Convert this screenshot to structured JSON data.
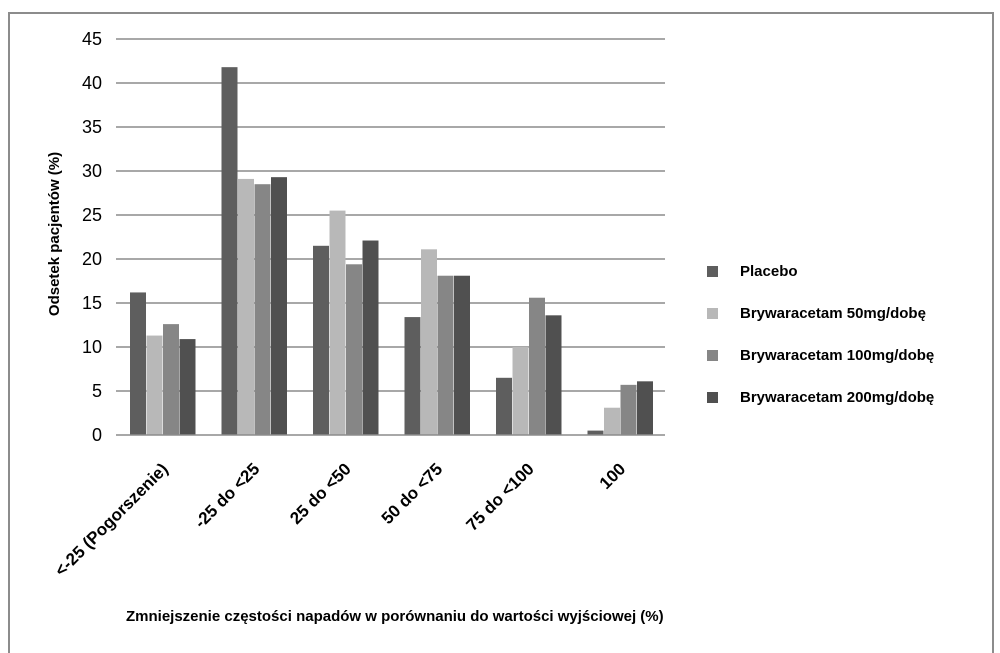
{
  "chart_data": {
    "type": "bar",
    "categories": [
      "<-25 (Pogorszenie)",
      "-25 do <25",
      "25 do <50",
      "50 do <75",
      "75 do <100",
      "100"
    ],
    "series": [
      {
        "name": "Placebo",
        "color": "#5e5e5e",
        "values": [
          16.2,
          41.8,
          21.5,
          13.4,
          6.5,
          0.5
        ]
      },
      {
        "name": "Brywaracetam 50mg/dobę",
        "color": "#b8b8b8",
        "values": [
          11.3,
          29.1,
          25.5,
          21.1,
          10.0,
          3.1
        ]
      },
      {
        "name": "Brywaracetam 100mg/dobę",
        "color": "#868686",
        "values": [
          12.6,
          28.5,
          19.4,
          18.1,
          15.6,
          5.7
        ]
      },
      {
        "name": "Brywaracetam 200mg/dobę",
        "color": "#505050",
        "values": [
          10.9,
          29.3,
          22.1,
          18.1,
          13.6,
          6.1
        ]
      }
    ],
    "yticks": [
      "0",
      "5",
      "10",
      "15",
      "20",
      "25",
      "30",
      "35",
      "40",
      "45"
    ],
    "ylim": [
      0,
      45
    ],
    "ylabel": "Odsetek pacjentów (%)",
    "xlabel": "Zmniejszenie częstości napadów w porównaniu do wartości wyjściowej (%)",
    "grid": true,
    "legend_position": "right"
  }
}
